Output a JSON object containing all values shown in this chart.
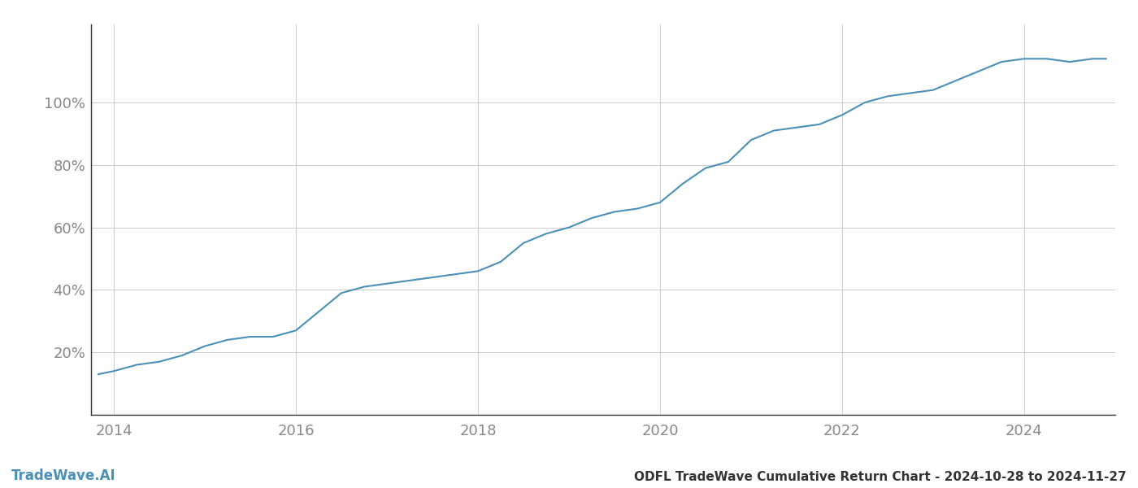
{
  "title": "ODFL TradeWave Cumulative Return Chart - 2024-10-28 to 2024-11-27",
  "watermark": "TradeWave.AI",
  "line_color": "#4a90b8",
  "line_width": 1.5,
  "background_color": "#ffffff",
  "grid_color": "#cccccc",
  "x_data": [
    2013.83,
    2014.0,
    2014.25,
    2014.5,
    2014.75,
    2015.0,
    2015.25,
    2015.5,
    2015.75,
    2016.0,
    2016.25,
    2016.5,
    2016.75,
    2017.0,
    2017.25,
    2017.5,
    2017.75,
    2018.0,
    2018.25,
    2018.5,
    2018.75,
    2019.0,
    2019.25,
    2019.5,
    2019.75,
    2020.0,
    2020.25,
    2020.5,
    2020.75,
    2021.0,
    2021.25,
    2021.5,
    2021.75,
    2022.0,
    2022.25,
    2022.5,
    2022.75,
    2023.0,
    2023.25,
    2023.5,
    2023.75,
    2024.0,
    2024.25,
    2024.5,
    2024.75,
    2024.9
  ],
  "y_data": [
    13,
    14,
    16,
    17,
    19,
    22,
    24,
    25,
    25,
    27,
    33,
    39,
    41,
    42,
    43,
    44,
    45,
    46,
    49,
    55,
    58,
    60,
    63,
    65,
    66,
    68,
    74,
    79,
    81,
    88,
    91,
    92,
    93,
    96,
    100,
    102,
    103,
    104,
    107,
    110,
    113,
    114,
    114,
    113,
    114,
    114
  ],
  "xlim": [
    2013.75,
    2025.0
  ],
  "ylim": [
    0,
    125
  ],
  "yticks": [
    20,
    40,
    60,
    80,
    100
  ],
  "ytick_labels": [
    "20%",
    "40%",
    "60%",
    "80%",
    "100%"
  ],
  "xtick_years": [
    2014,
    2016,
    2018,
    2020,
    2022,
    2024
  ],
  "tick_color": "#888888",
  "tick_fontsize": 13,
  "title_fontsize": 11,
  "watermark_fontsize": 12,
  "spine_color": "#333333"
}
